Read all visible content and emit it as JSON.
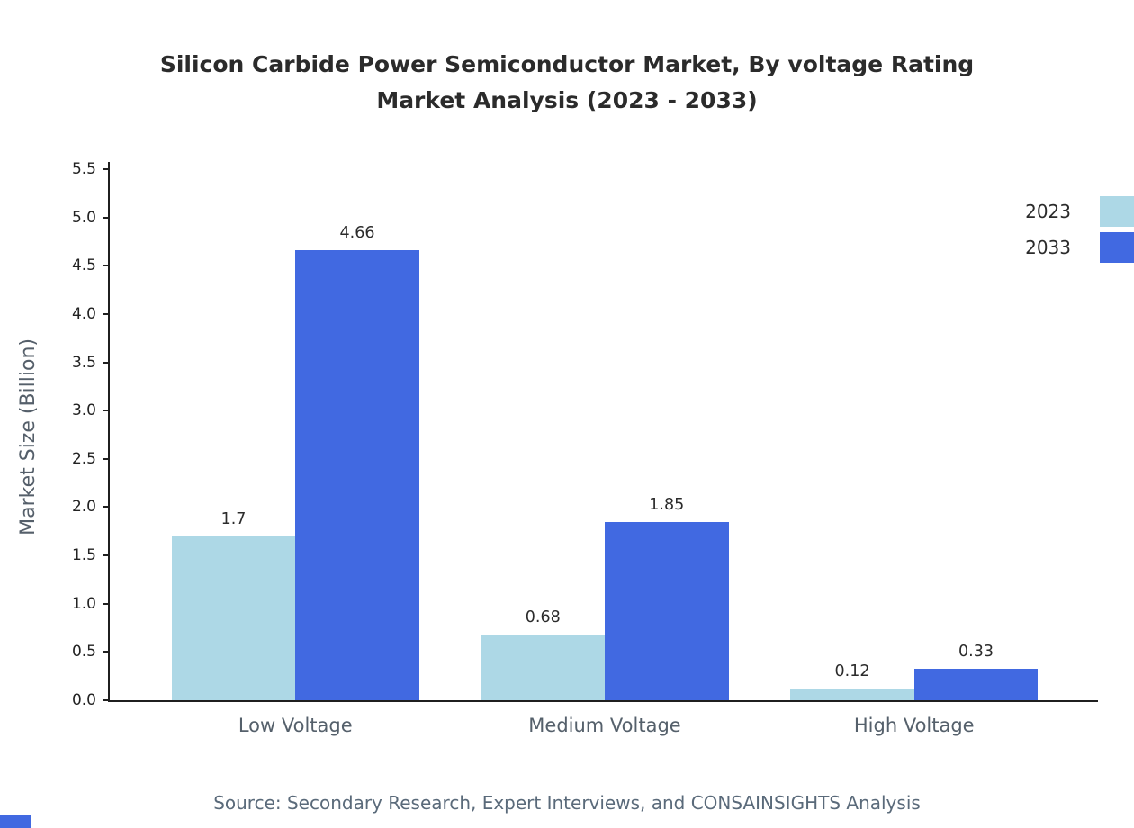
{
  "chart_data": {
    "type": "bar",
    "title": "Silicon Carbide Power Semiconductor Market, By voltage Rating",
    "subtitle": "Market Analysis (2023 - 2033)",
    "categories": [
      "Low Voltage",
      "Medium Voltage",
      "High Voltage"
    ],
    "series": [
      {
        "name": "2023",
        "color": "#ADD8E6",
        "values": [
          1.7,
          0.68,
          0.12
        ]
      },
      {
        "name": "2033",
        "color": "#4169E1",
        "values": [
          4.66,
          1.85,
          0.33
        ]
      }
    ],
    "xlabel": "",
    "ylabel": "Market Size (Billion)",
    "ylim": [
      0,
      5.5
    ],
    "ytick_step": 0.5,
    "grid": false,
    "legend_position": "top-right",
    "source": "Source: Secondary Research, Expert Interviews, and CONSAINSIGHTS Analysis"
  },
  "colors": {
    "axis": "#1f1f1f",
    "title": "#2b2b2b",
    "tick_label": "#222222",
    "category_label": "#55606b",
    "source": "#5a6a7a",
    "accent_2023": "#ADD8E6",
    "accent_2033": "#4169E1"
  }
}
